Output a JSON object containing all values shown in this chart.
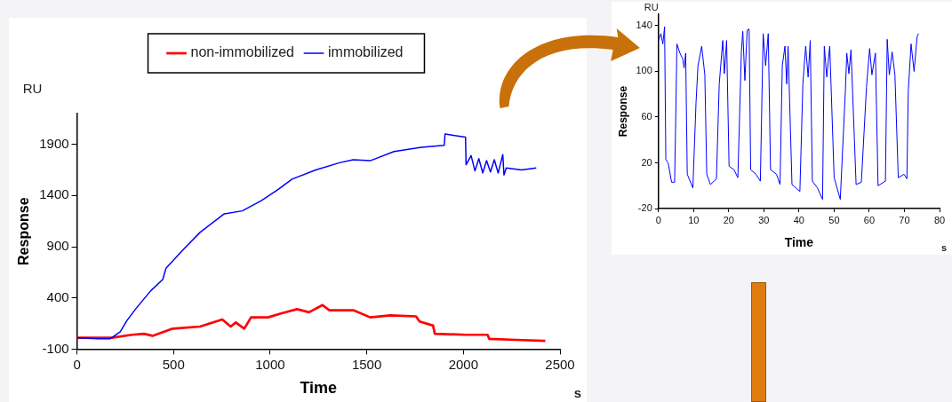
{
  "chart_data": [
    {
      "type": "line",
      "xlabel": "Time",
      "ylabel": "Response",
      "annotations": [
        "RU",
        "s"
      ],
      "legend": "top",
      "xlim": [
        0,
        2500
      ],
      "ylim": [
        -100,
        2200
      ],
      "xticks": [
        0,
        500,
        1000,
        1500,
        2000,
        2500
      ],
      "yticks": [
        -100,
        400,
        900,
        1400,
        1900
      ],
      "series": [
        {
          "name": "non-immobilized",
          "color": "#ff0000",
          "x": [
            0,
            74,
            180,
            285,
            347,
            391,
            496,
            637,
            752,
            796,
            822,
            866,
            901,
            989,
            1060,
            1139,
            1201,
            1271,
            1306,
            1430,
            1518,
            1623,
            1755,
            1773,
            1843,
            1852,
            2011,
            2125,
            2134,
            2275,
            2424
          ],
          "values": [
            10,
            10,
            10,
            40,
            50,
            30,
            100,
            120,
            190,
            120,
            160,
            100,
            210,
            210,
            250,
            290,
            260,
            330,
            280,
            280,
            210,
            230,
            220,
            170,
            130,
            50,
            40,
            40,
            0,
            -10,
            -20
          ]
        },
        {
          "name": "immobilized",
          "color": "#0000ff",
          "x": [
            0,
            109,
            171,
            224,
            259,
            303,
            382,
            444,
            461,
            549,
            637,
            761,
            856,
            954,
            1042,
            1113,
            1236,
            1359,
            1430,
            1518,
            1641,
            1782,
            1901,
            1905,
            2011,
            2014,
            2040,
            2060,
            2080,
            2100,
            2120,
            2140,
            2160,
            2180,
            2204,
            2210,
            2222,
            2300,
            2377
          ],
          "values": [
            10,
            0,
            0,
            70,
            180,
            290,
            470,
            580,
            690,
            870,
            1040,
            1220,
            1250,
            1350,
            1460,
            1560,
            1650,
            1720,
            1750,
            1740,
            1830,
            1870,
            1890,
            2000,
            1970,
            1700,
            1790,
            1640,
            1760,
            1620,
            1740,
            1630,
            1750,
            1620,
            1800,
            1600,
            1670,
            1650,
            1670
          ]
        }
      ]
    },
    {
      "type": "line",
      "xlabel": "Time",
      "ylabel": "Response",
      "annotations": [
        "RU",
        "s"
      ],
      "xlim": [
        0,
        80
      ],
      "ylim": [
        -20,
        150
      ],
      "xticks": [
        0,
        10,
        20,
        30,
        40,
        50,
        60,
        70,
        80
      ],
      "yticks": [
        -20,
        20,
        60,
        100,
        140
      ],
      "series": [
        {
          "color": "#0000ff",
          "x": [
            0,
            0.7,
            1.25,
            1.75,
            2.1,
            2.75,
            3.75,
            4.6,
            5,
            5.25,
            6.1,
            6.9,
            7.3,
            7.75,
            8.2,
            9.8,
            10.7,
            11.25,
            12.3,
            13.2,
            13.75,
            14.8,
            16.5,
            17.3,
            18.3,
            18.75,
            19.4,
            20.1,
            21.5,
            22.6,
            23.6,
            24,
            24.6,
            25.25,
            25.8,
            26.25,
            27.75,
            29,
            29.8,
            30.5,
            31.25,
            31.9,
            33.6,
            34.6,
            35.25,
            36,
            36.5,
            36.9,
            38,
            40.25,
            41.1,
            41.9,
            42.6,
            43.2,
            43.8,
            45.25,
            46.7,
            47.2,
            47.9,
            48.75,
            50,
            51.75,
            53.2,
            53.6,
            54.2,
            54.8,
            56.25,
            57.75,
            59.2,
            60.1,
            60.75,
            61.75,
            62.5,
            64.6,
            65.1,
            65.7,
            66.5,
            67.3,
            68.25,
            69.9,
            70.7,
            71.1,
            71.9,
            72.75,
            73.6,
            74
          ],
          "values": [
            127,
            133,
            124,
            139,
            23,
            20,
            3,
            3,
            73,
            124,
            116,
            111,
            103,
            116,
            10,
            -2,
            73,
            105,
            122,
            97,
            10,
            1,
            6,
            89,
            127,
            98,
            127,
            17,
            14,
            7,
            117,
            135,
            92,
            136,
            137,
            14,
            10,
            4,
            133,
            105,
            133,
            14,
            10,
            1,
            105,
            122,
            89,
            122,
            1,
            -5,
            89,
            122,
            95,
            127,
            4,
            -2,
            -12,
            122,
            95,
            122,
            7,
            -12,
            83,
            116,
            98,
            119,
            1,
            3,
            86,
            120,
            97,
            116,
            0,
            4,
            128,
            97,
            117,
            97,
            7,
            10,
            6,
            83,
            124,
            100,
            130,
            133
          ]
        }
      ]
    }
  ]
}
